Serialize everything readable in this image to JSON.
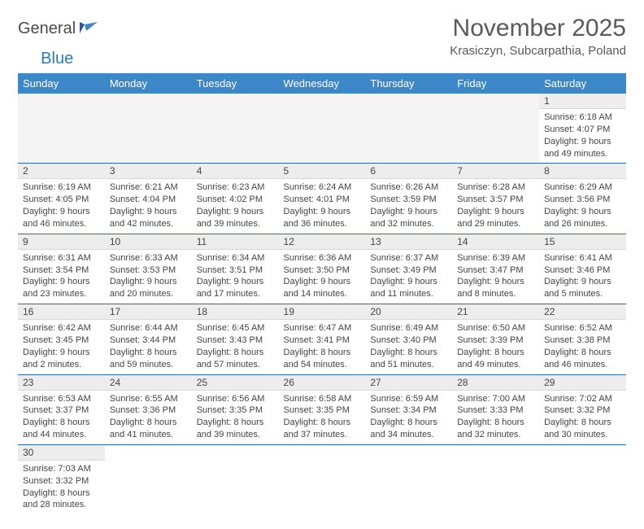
{
  "brand": {
    "part1": "General",
    "part2": "Blue"
  },
  "title": "November 2025",
  "location": "Krasiczyn, Subcarpathia, Poland",
  "colors": {
    "header_bg": "#3b87c8",
    "header_text": "#ffffff",
    "brand_dark": "#4a4a4a",
    "brand_blue": "#2d79c0",
    "daynum_bg": "#ededed",
    "border": "#2d6aa8",
    "text": "#444444"
  },
  "days_of_week": [
    "Sunday",
    "Monday",
    "Tuesday",
    "Wednesday",
    "Thursday",
    "Friday",
    "Saturday"
  ],
  "weeks": [
    [
      null,
      null,
      null,
      null,
      null,
      null,
      {
        "n": "1",
        "sr": "Sunrise: 6:18 AM",
        "ss": "Sunset: 4:07 PM",
        "d1": "Daylight: 9 hours",
        "d2": "and 49 minutes."
      }
    ],
    [
      {
        "n": "2",
        "sr": "Sunrise: 6:19 AM",
        "ss": "Sunset: 4:05 PM",
        "d1": "Daylight: 9 hours",
        "d2": "and 46 minutes."
      },
      {
        "n": "3",
        "sr": "Sunrise: 6:21 AM",
        "ss": "Sunset: 4:04 PM",
        "d1": "Daylight: 9 hours",
        "d2": "and 42 minutes."
      },
      {
        "n": "4",
        "sr": "Sunrise: 6:23 AM",
        "ss": "Sunset: 4:02 PM",
        "d1": "Daylight: 9 hours",
        "d2": "and 39 minutes."
      },
      {
        "n": "5",
        "sr": "Sunrise: 6:24 AM",
        "ss": "Sunset: 4:01 PM",
        "d1": "Daylight: 9 hours",
        "d2": "and 36 minutes."
      },
      {
        "n": "6",
        "sr": "Sunrise: 6:26 AM",
        "ss": "Sunset: 3:59 PM",
        "d1": "Daylight: 9 hours",
        "d2": "and 32 minutes."
      },
      {
        "n": "7",
        "sr": "Sunrise: 6:28 AM",
        "ss": "Sunset: 3:57 PM",
        "d1": "Daylight: 9 hours",
        "d2": "and 29 minutes."
      },
      {
        "n": "8",
        "sr": "Sunrise: 6:29 AM",
        "ss": "Sunset: 3:56 PM",
        "d1": "Daylight: 9 hours",
        "d2": "and 26 minutes."
      }
    ],
    [
      {
        "n": "9",
        "sr": "Sunrise: 6:31 AM",
        "ss": "Sunset: 3:54 PM",
        "d1": "Daylight: 9 hours",
        "d2": "and 23 minutes."
      },
      {
        "n": "10",
        "sr": "Sunrise: 6:33 AM",
        "ss": "Sunset: 3:53 PM",
        "d1": "Daylight: 9 hours",
        "d2": "and 20 minutes."
      },
      {
        "n": "11",
        "sr": "Sunrise: 6:34 AM",
        "ss": "Sunset: 3:51 PM",
        "d1": "Daylight: 9 hours",
        "d2": "and 17 minutes."
      },
      {
        "n": "12",
        "sr": "Sunrise: 6:36 AM",
        "ss": "Sunset: 3:50 PM",
        "d1": "Daylight: 9 hours",
        "d2": "and 14 minutes."
      },
      {
        "n": "13",
        "sr": "Sunrise: 6:37 AM",
        "ss": "Sunset: 3:49 PM",
        "d1": "Daylight: 9 hours",
        "d2": "and 11 minutes."
      },
      {
        "n": "14",
        "sr": "Sunrise: 6:39 AM",
        "ss": "Sunset: 3:47 PM",
        "d1": "Daylight: 9 hours",
        "d2": "and 8 minutes."
      },
      {
        "n": "15",
        "sr": "Sunrise: 6:41 AM",
        "ss": "Sunset: 3:46 PM",
        "d1": "Daylight: 9 hours",
        "d2": "and 5 minutes."
      }
    ],
    [
      {
        "n": "16",
        "sr": "Sunrise: 6:42 AM",
        "ss": "Sunset: 3:45 PM",
        "d1": "Daylight: 9 hours",
        "d2": "and 2 minutes."
      },
      {
        "n": "17",
        "sr": "Sunrise: 6:44 AM",
        "ss": "Sunset: 3:44 PM",
        "d1": "Daylight: 8 hours",
        "d2": "and 59 minutes."
      },
      {
        "n": "18",
        "sr": "Sunrise: 6:45 AM",
        "ss": "Sunset: 3:43 PM",
        "d1": "Daylight: 8 hours",
        "d2": "and 57 minutes."
      },
      {
        "n": "19",
        "sr": "Sunrise: 6:47 AM",
        "ss": "Sunset: 3:41 PM",
        "d1": "Daylight: 8 hours",
        "d2": "and 54 minutes."
      },
      {
        "n": "20",
        "sr": "Sunrise: 6:49 AM",
        "ss": "Sunset: 3:40 PM",
        "d1": "Daylight: 8 hours",
        "d2": "and 51 minutes."
      },
      {
        "n": "21",
        "sr": "Sunrise: 6:50 AM",
        "ss": "Sunset: 3:39 PM",
        "d1": "Daylight: 8 hours",
        "d2": "and 49 minutes."
      },
      {
        "n": "22",
        "sr": "Sunrise: 6:52 AM",
        "ss": "Sunset: 3:38 PM",
        "d1": "Daylight: 8 hours",
        "d2": "and 46 minutes."
      }
    ],
    [
      {
        "n": "23",
        "sr": "Sunrise: 6:53 AM",
        "ss": "Sunset: 3:37 PM",
        "d1": "Daylight: 8 hours",
        "d2": "and 44 minutes."
      },
      {
        "n": "24",
        "sr": "Sunrise: 6:55 AM",
        "ss": "Sunset: 3:36 PM",
        "d1": "Daylight: 8 hours",
        "d2": "and 41 minutes."
      },
      {
        "n": "25",
        "sr": "Sunrise: 6:56 AM",
        "ss": "Sunset: 3:35 PM",
        "d1": "Daylight: 8 hours",
        "d2": "and 39 minutes."
      },
      {
        "n": "26",
        "sr": "Sunrise: 6:58 AM",
        "ss": "Sunset: 3:35 PM",
        "d1": "Daylight: 8 hours",
        "d2": "and 37 minutes."
      },
      {
        "n": "27",
        "sr": "Sunrise: 6:59 AM",
        "ss": "Sunset: 3:34 PM",
        "d1": "Daylight: 8 hours",
        "d2": "and 34 minutes."
      },
      {
        "n": "28",
        "sr": "Sunrise: 7:00 AM",
        "ss": "Sunset: 3:33 PM",
        "d1": "Daylight: 8 hours",
        "d2": "and 32 minutes."
      },
      {
        "n": "29",
        "sr": "Sunrise: 7:02 AM",
        "ss": "Sunset: 3:32 PM",
        "d1": "Daylight: 8 hours",
        "d2": "and 30 minutes."
      }
    ],
    [
      {
        "n": "30",
        "sr": "Sunrise: 7:03 AM",
        "ss": "Sunset: 3:32 PM",
        "d1": "Daylight: 8 hours",
        "d2": "and 28 minutes."
      },
      null,
      null,
      null,
      null,
      null,
      null
    ]
  ]
}
